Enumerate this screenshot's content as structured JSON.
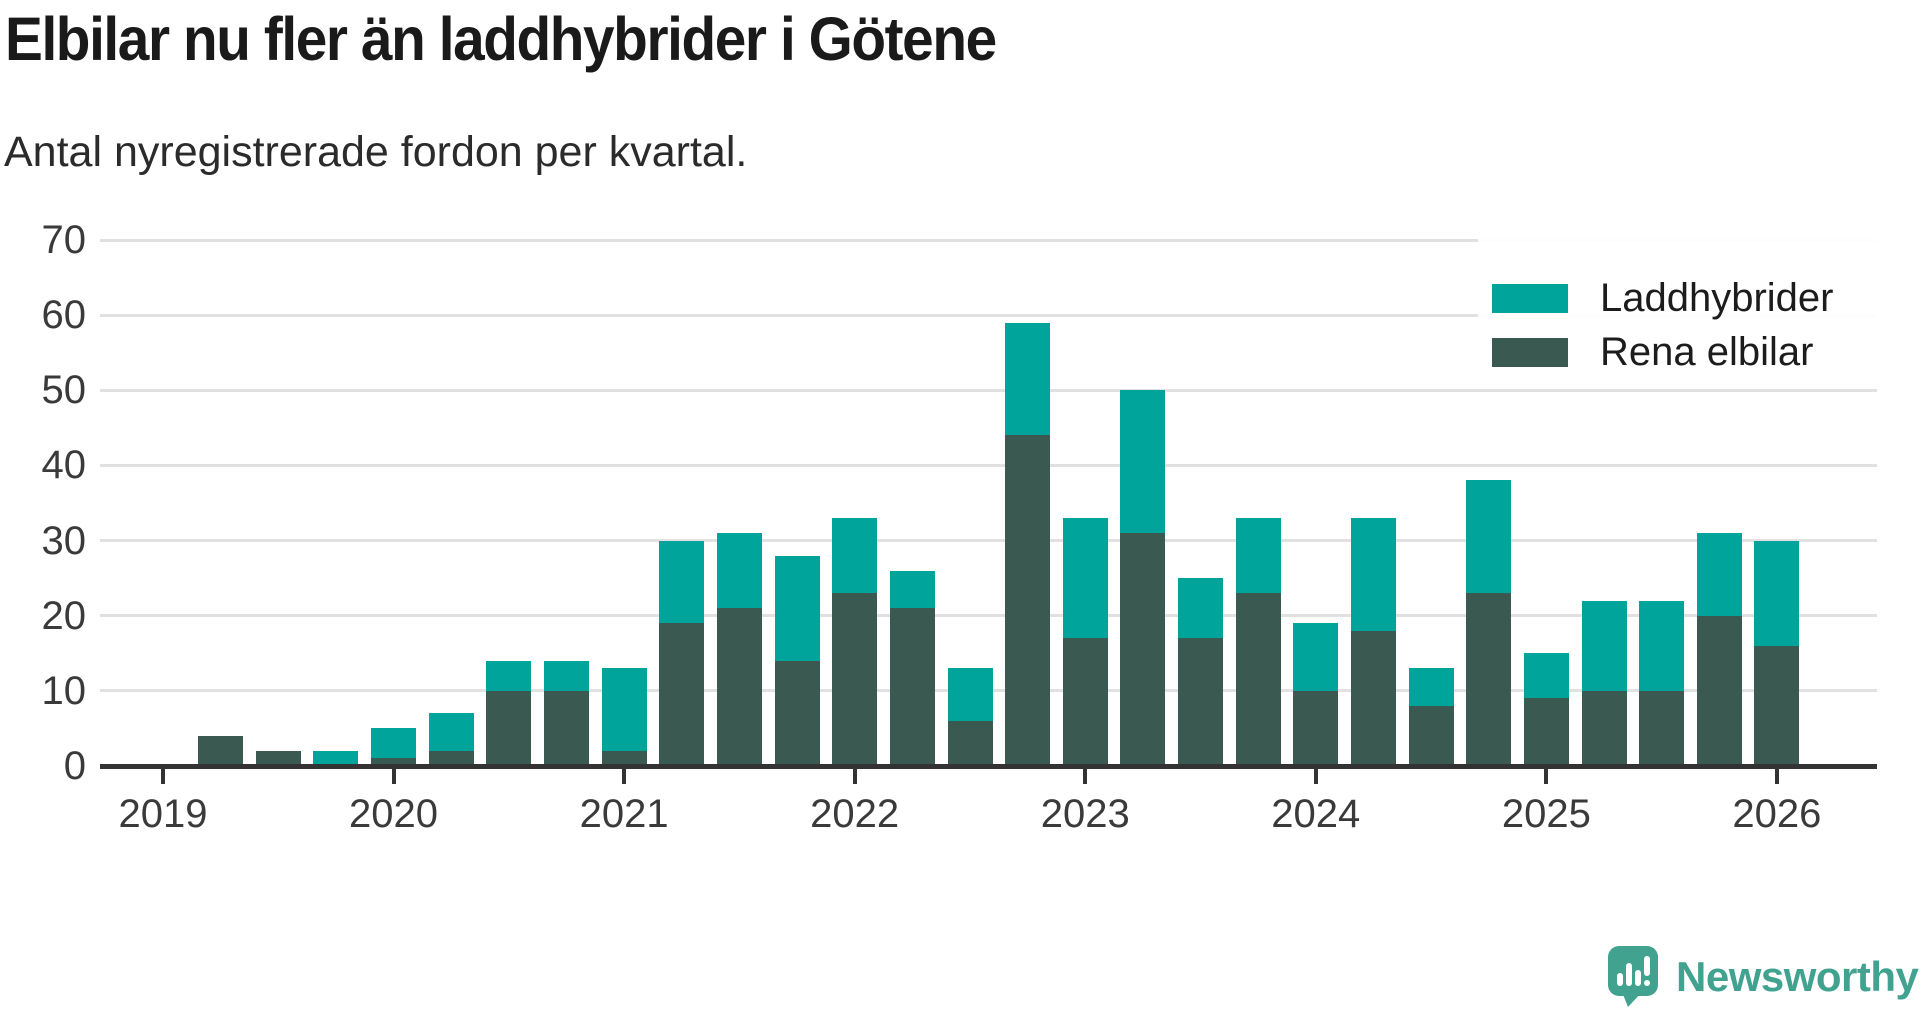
{
  "title": "Elbilar nu fler än laddhybrider i Götene",
  "subtitle": "Antal nyregistrerade fordon per kvartal.",
  "legend": {
    "items": [
      {
        "label": "Laddhybrider",
        "color": "#00a49a"
      },
      {
        "label": "Rena elbilar",
        "color": "#3a5a51"
      }
    ]
  },
  "branding": {
    "name": "Newsworthy",
    "color": "#41a38f"
  },
  "colors": {
    "laddhybrider": "#00a49a",
    "rena_elbilar": "#3a5a51",
    "axis": "#333333",
    "gridline": "#e1e1e1",
    "tick_text": "#3a3a3a",
    "title_text": "#1a1a1a"
  },
  "chart_data": {
    "type": "bar",
    "stacked": true,
    "title": "Elbilar nu fler än laddhybrider i Götene",
    "subtitle": "Antal nyregistrerade fordon per kvartal.",
    "xlabel": "",
    "ylabel": "",
    "ylim": [
      0,
      70
    ],
    "y_ticks": [
      0,
      10,
      20,
      30,
      40,
      50,
      60,
      70
    ],
    "grid": "horizontal",
    "legend_position": "top-right",
    "x_year_labels": [
      "2019",
      "2020",
      "2021",
      "2022",
      "2023",
      "2024",
      "2025",
      "2026"
    ],
    "categories": [
      "2019 Q1",
      "2019 Q2",
      "2019 Q3",
      "2019 Q4",
      "2020 Q1",
      "2020 Q2",
      "2020 Q3",
      "2020 Q4",
      "2021 Q1",
      "2021 Q2",
      "2021 Q3",
      "2021 Q4",
      "2022 Q1",
      "2022 Q2",
      "2022 Q3",
      "2022 Q4",
      "2023 Q1",
      "2023 Q2",
      "2023 Q3",
      "2023 Q4",
      "2024 Q1",
      "2024 Q2",
      "2024 Q3",
      "2024 Q4",
      "2025 Q1",
      "2025 Q2",
      "2025 Q3",
      "2025 Q4",
      "2026 Q1"
    ],
    "series": [
      {
        "name": "Rena elbilar",
        "color": "#3a5a51",
        "stack_order": "bottom",
        "values": [
          0,
          4,
          2,
          0,
          1,
          2,
          10,
          10,
          2,
          19,
          21,
          14,
          23,
          21,
          6,
          44,
          17,
          31,
          17,
          23,
          10,
          18,
          8,
          23,
          9,
          10,
          10,
          20,
          16
        ]
      },
      {
        "name": "Laddhybrider",
        "color": "#00a49a",
        "stack_order": "top",
        "values": [
          0,
          0,
          0,
          2,
          4,
          5,
          4,
          4,
          11,
          11,
          10,
          14,
          10,
          5,
          7,
          15,
          16,
          19,
          8,
          10,
          9,
          15,
          5,
          15,
          6,
          12,
          12,
          11,
          14
        ]
      }
    ],
    "totals": [
      0,
      4,
      2,
      2,
      5,
      7,
      14,
      14,
      13,
      30,
      31,
      28,
      33,
      26,
      13,
      59,
      33,
      50,
      25,
      33,
      19,
      33,
      13,
      38,
      15,
      22,
      22,
      31,
      30
    ]
  }
}
